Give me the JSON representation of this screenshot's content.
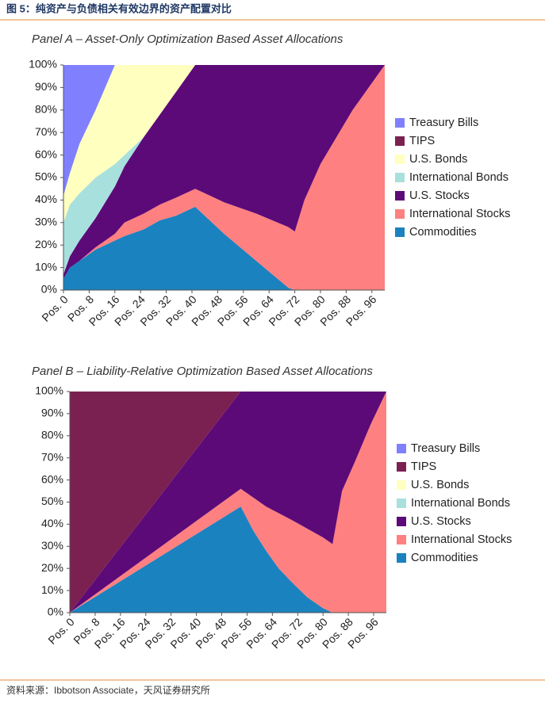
{
  "title": "图 5：纯资产与负债相关有效边界的资产配置对比",
  "source": "资料来源：Ibbotson Associate，天风证券研究所",
  "chart_data": [
    {
      "type": "area",
      "stacked": true,
      "legend": "right",
      "title": "Panel A – Asset-Only Optimization Based Asset Allocations",
      "x": [
        0,
        2,
        5,
        10,
        16,
        19,
        25,
        30,
        35,
        41,
        50,
        60,
        70,
        72,
        75,
        80,
        85,
        90,
        95,
        100
      ],
      "xlim": [
        0,
        100
      ],
      "xticks": [
        {
          "value": 0,
          "label": "Pos. 0"
        },
        {
          "value": 8,
          "label": "Pos. 8"
        },
        {
          "value": 16,
          "label": "Pos. 16"
        },
        {
          "value": 24,
          "label": "Pos. 24"
        },
        {
          "value": 32,
          "label": "Pos. 32"
        },
        {
          "value": 40,
          "label": "Pos. 40"
        },
        {
          "value": 48,
          "label": "Pos. 48"
        },
        {
          "value": 56,
          "label": "Pos. 56"
        },
        {
          "value": 64,
          "label": "Pos. 64"
        },
        {
          "value": 72,
          "label": "Pos. 72"
        },
        {
          "value": 80,
          "label": "Pos. 80"
        },
        {
          "value": 88,
          "label": "Pos. 88"
        },
        {
          "value": 96,
          "label": "Pos. 96"
        }
      ],
      "ylim": [
        0,
        100
      ],
      "yticks": [
        {
          "value": 0,
          "label": "0%"
        },
        {
          "value": 10,
          "label": "10%"
        },
        {
          "value": 20,
          "label": "20%"
        },
        {
          "value": 30,
          "label": "30%"
        },
        {
          "value": 40,
          "label": "40%"
        },
        {
          "value": 50,
          "label": "50%"
        },
        {
          "value": 60,
          "label": "60%"
        },
        {
          "value": 70,
          "label": "70%"
        },
        {
          "value": 80,
          "label": "80%"
        },
        {
          "value": 90,
          "label": "90%"
        },
        {
          "value": 100,
          "label": "100%"
        }
      ],
      "series": [
        {
          "name": "Treasury Bills",
          "color": "#8080ff",
          "values": [
            58,
            48,
            35,
            20,
            0,
            0,
            0,
            0,
            0,
            0,
            0,
            0,
            0,
            0,
            0,
            0,
            0,
            0,
            0,
            0
          ]
        },
        {
          "name": "TIPS",
          "color": "#7b2152",
          "values": [
            0,
            0,
            0,
            0,
            0,
            0,
            0,
            0,
            0,
            0,
            0,
            0,
            0,
            0,
            0,
            0,
            0,
            0,
            0,
            0
          ]
        },
        {
          "name": "U.S. Bonds",
          "color": "#ffffc0",
          "values": [
            12,
            14,
            22,
            30,
            44,
            40,
            32,
            22,
            12,
            0,
            0,
            0,
            0,
            0,
            0,
            0,
            0,
            0,
            0,
            0
          ]
        },
        {
          "name": "International Bonds",
          "color": "#a8e0de",
          "values": [
            23,
            23,
            21,
            18,
            10,
            5,
            0,
            0,
            0,
            0,
            0,
            0,
            0,
            0,
            0,
            0,
            0,
            0,
            0,
            0
          ]
        },
        {
          "name": "U.S. Stocks",
          "color": "#5c0a78",
          "values": [
            2,
            5,
            9,
            13,
            21,
            25,
            34,
            40,
            47,
            55,
            61,
            66,
            72,
            74,
            60,
            44,
            32,
            20,
            10,
            0
          ]
        },
        {
          "name": "International Stocks",
          "color": "#ff8080",
          "values": [
            0,
            0,
            0,
            1,
            3,
            6,
            7,
            7,
            8,
            8,
            14,
            21,
            27,
            26,
            40,
            56,
            68,
            80,
            90,
            100
          ]
        },
        {
          "name": "Commodities",
          "color": "#1a82bf",
          "values": [
            5,
            10,
            13,
            18,
            22,
            24,
            27,
            31,
            33,
            37,
            25,
            13,
            1,
            0,
            0,
            0,
            0,
            0,
            0,
            0
          ]
        }
      ]
    },
    {
      "type": "area",
      "stacked": true,
      "legend": "right",
      "title": "Panel B – Liability-Relative Optimization Based Asset Allocations",
      "x": [
        0,
        54,
        58,
        62,
        66,
        70,
        75,
        80,
        83,
        86,
        90,
        95,
        100
      ],
      "xlim": [
        0,
        100
      ],
      "xticks": [
        {
          "value": 0,
          "label": "Pos. 0"
        },
        {
          "value": 8,
          "label": "Pos. 8"
        },
        {
          "value": 16,
          "label": "Pos. 16"
        },
        {
          "value": 24,
          "label": "Pos. 24"
        },
        {
          "value": 32,
          "label": "Pos. 32"
        },
        {
          "value": 40,
          "label": "Pos. 40"
        },
        {
          "value": 48,
          "label": "Pos. 48"
        },
        {
          "value": 56,
          "label": "Pos. 56"
        },
        {
          "value": 64,
          "label": "Pos. 64"
        },
        {
          "value": 72,
          "label": "Pos. 72"
        },
        {
          "value": 80,
          "label": "Pos. 80"
        },
        {
          "value": 88,
          "label": "Pos. 88"
        },
        {
          "value": 96,
          "label": "Pos. 96"
        }
      ],
      "ylim": [
        0,
        100
      ],
      "yticks": [
        {
          "value": 0,
          "label": "0%"
        },
        {
          "value": 10,
          "label": "10%"
        },
        {
          "value": 20,
          "label": "20%"
        },
        {
          "value": 30,
          "label": "30%"
        },
        {
          "value": 40,
          "label": "40%"
        },
        {
          "value": 50,
          "label": "50%"
        },
        {
          "value": 60,
          "label": "60%"
        },
        {
          "value": 70,
          "label": "70%"
        },
        {
          "value": 80,
          "label": "80%"
        },
        {
          "value": 90,
          "label": "90%"
        },
        {
          "value": 100,
          "label": "100%"
        }
      ],
      "series": [
        {
          "name": "Treasury Bills",
          "color": "#8080ff",
          "values": [
            0,
            0,
            0,
            0,
            0,
            0,
            0,
            0,
            0,
            0,
            0,
            0,
            0
          ]
        },
        {
          "name": "TIPS",
          "color": "#7b2152",
          "values": [
            100,
            0,
            0,
            0,
            0,
            0,
            0,
            0,
            0,
            0,
            0,
            0,
            0
          ]
        },
        {
          "name": "U.S. Bonds",
          "color": "#ffffc0",
          "values": [
            0,
            0,
            0,
            0,
            0,
            0,
            0,
            0,
            0,
            0,
            0,
            0,
            0
          ]
        },
        {
          "name": "International Bonds",
          "color": "#a8e0de",
          "values": [
            0,
            0,
            0,
            0,
            0,
            0,
            0,
            0,
            0,
            0,
            0,
            0,
            0
          ]
        },
        {
          "name": "U.S. Stocks",
          "color": "#5c0a78",
          "values": [
            0,
            44,
            48,
            52,
            55,
            58,
            62,
            66,
            69,
            45,
            32,
            15,
            0
          ]
        },
        {
          "name": "International Stocks",
          "color": "#ff8080",
          "values": [
            0,
            8,
            15,
            20,
            25,
            28,
            31,
            32,
            31,
            55,
            68,
            85,
            100
          ]
        },
        {
          "name": "Commodities",
          "color": "#1a82bf",
          "values": [
            0,
            48,
            37,
            28,
            20,
            14,
            7,
            2,
            0,
            0,
            0,
            0,
            0
          ]
        }
      ]
    }
  ]
}
